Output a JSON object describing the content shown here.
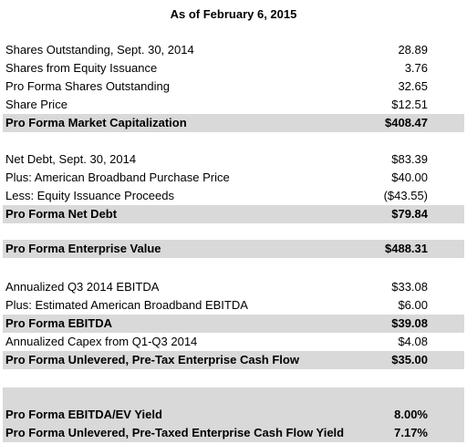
{
  "title": "As of February 6, 2015",
  "rows": [
    {
      "label": "Shares Outstanding, Sept. 30, 2014",
      "value": "28.89"
    },
    {
      "label": "Shares from Equity Issuance",
      "value": "3.76"
    },
    {
      "label": "Pro Forma Shares Outstanding",
      "value": "32.65"
    },
    {
      "label": "Share Price",
      "value": "$12.51"
    },
    {
      "label": "Pro Forma Market Capitalization",
      "value": "$408.47"
    },
    {
      "label": "Net Debt, Sept. 30, 2014",
      "value": "$83.39"
    },
    {
      "label": "Plus: American Broadband Purchase Price",
      "value": "$40.00"
    },
    {
      "label": "Less: Equity Issuance Proceeds",
      "value": "($43.55)"
    },
    {
      "label": "Pro Forma Net Debt",
      "value": "$79.84"
    },
    {
      "label": "Pro Forma Enterprise Value",
      "value": "$488.31"
    },
    {
      "label": "Annualized Q3 2014 EBITDA",
      "value": "$33.08"
    },
    {
      "label": "Plus: Estimated American Broadband EBITDA",
      "value": "$6.00"
    },
    {
      "label": "Pro Forma EBITDA",
      "value": "$39.08"
    },
    {
      "label": "Annualized Capex from Q1-Q3 2014",
      "value": "$4.08"
    },
    {
      "label": "Pro Forma Unlevered, Pre-Tax Enterprise Cash Flow",
      "value": "$35.00"
    },
    {
      "label": "Pro Forma EBITDA/EV Yield",
      "value": "8.00%"
    },
    {
      "label": "Pro Forma Unlevered, Pre-Taxed Enterprise Cash Flow Yield",
      "value": "7.17%"
    }
  ],
  "highlight_color": "#d9d9d9"
}
